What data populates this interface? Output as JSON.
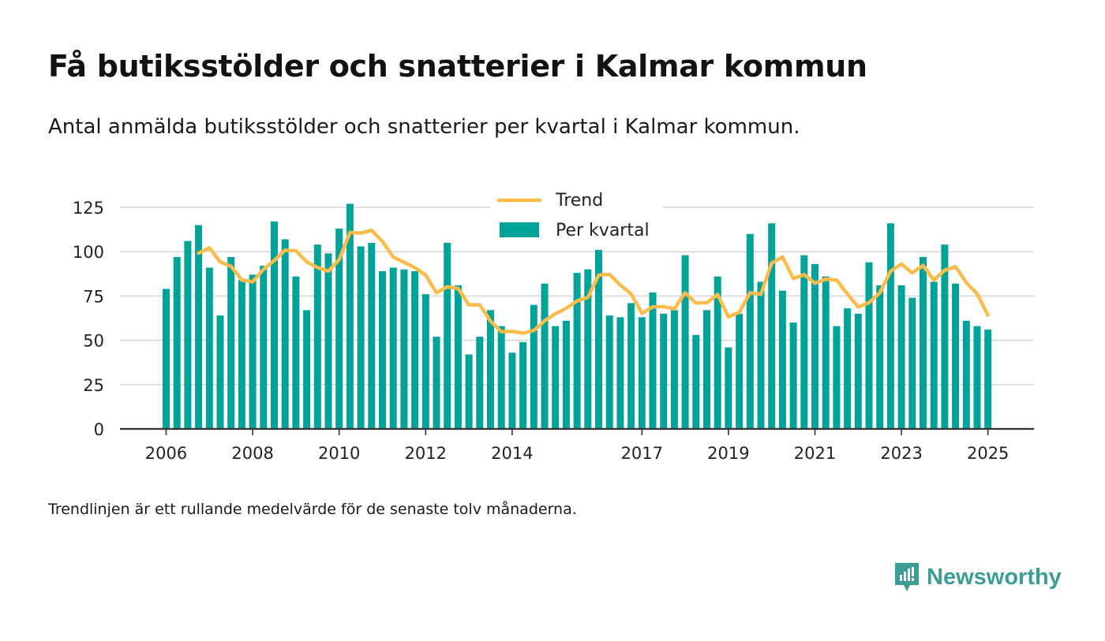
{
  "title": "Få butiksstölder och snatterier i Kalmar kommun",
  "subtitle": "Antal anmälda butiksstölder och snatterier per kvartal i Kalmar kommun.",
  "footnote": "Trendlinjen är ett rullande medelvärde för de senaste tolv månaderna.",
  "brand": {
    "name": "Newsworthy",
    "icon": "newsworthy-logo-icon",
    "color": "#3a9e96"
  },
  "colors": {
    "bar": "#00a398",
    "trend": "#fcbc4c",
    "grid": "#d9d9d9",
    "axis": "#333333"
  },
  "chart_data": {
    "type": "bar",
    "x": [
      "2006-Q1",
      "2006-Q2",
      "2006-Q3",
      "2006-Q4",
      "2007-Q1",
      "2007-Q2",
      "2007-Q3",
      "2007-Q4",
      "2008-Q1",
      "2008-Q2",
      "2008-Q3",
      "2008-Q4",
      "2009-Q1",
      "2009-Q2",
      "2009-Q3",
      "2009-Q4",
      "2010-Q1",
      "2010-Q2",
      "2010-Q3",
      "2010-Q4",
      "2011-Q1",
      "2011-Q2",
      "2011-Q3",
      "2011-Q4",
      "2012-Q1",
      "2012-Q2",
      "2012-Q3",
      "2012-Q4",
      "2013-Q1",
      "2013-Q2",
      "2013-Q3",
      "2013-Q4",
      "2014-Q1",
      "2014-Q2",
      "2014-Q3",
      "2014-Q4",
      "2015-Q1",
      "2015-Q2",
      "2015-Q3",
      "2015-Q4",
      "2016-Q1",
      "2016-Q2",
      "2016-Q3",
      "2016-Q4",
      "2017-Q1",
      "2017-Q2",
      "2017-Q3",
      "2017-Q4",
      "2018-Q1",
      "2018-Q2",
      "2018-Q3",
      "2018-Q4",
      "2019-Q1",
      "2019-Q2",
      "2019-Q3",
      "2019-Q4",
      "2020-Q1",
      "2020-Q2",
      "2020-Q3",
      "2020-Q4",
      "2021-Q1",
      "2021-Q2",
      "2021-Q3",
      "2021-Q4",
      "2022-Q1",
      "2022-Q2",
      "2022-Q3",
      "2022-Q4",
      "2023-Q1",
      "2023-Q2",
      "2023-Q3",
      "2023-Q4",
      "2024-Q1",
      "2024-Q2",
      "2024-Q3",
      "2024-Q4",
      "2025-Q1"
    ],
    "series": [
      {
        "name": "Per kvartal",
        "type": "bar",
        "values": [
          79,
          97,
          106,
          115,
          91,
          64,
          97,
          84,
          87,
          92,
          117,
          107,
          86,
          67,
          104,
          99,
          113,
          127,
          103,
          105,
          89,
          91,
          90,
          89,
          76,
          52,
          105,
          81,
          42,
          52,
          67,
          58,
          43,
          49,
          70,
          82,
          58,
          61,
          88,
          90,
          101,
          64,
          63,
          71,
          63,
          77,
          65,
          67,
          98,
          53,
          67,
          86,
          46,
          65,
          110,
          83,
          116,
          78,
          60,
          98,
          93,
          86,
          58,
          68,
          65,
          94,
          81,
          116,
          81,
          74,
          97,
          83,
          104,
          82,
          61,
          58,
          56
        ]
      },
      {
        "name": "Trend",
        "type": "line",
        "values": [
          null,
          null,
          null,
          99.2,
          102.2,
          94.2,
          91.8,
          84,
          83,
          90,
          95,
          100.8,
          100.5,
          94.2,
          91,
          89,
          95.5,
          110.8,
          110.5,
          112,
          105.8,
          97,
          94,
          91,
          86.8,
          76.8,
          80.2,
          79.2,
          70,
          70,
          60.8,
          54.8,
          55,
          54,
          55.5,
          61,
          65,
          68,
          72.2,
          74.2,
          86.8,
          87.2,
          81.2,
          76.2,
          65.2,
          68.8,
          69,
          67.8,
          76.8,
          71,
          71.2,
          75.8,
          63.2,
          65.8,
          76.8,
          76,
          93.5,
          97,
          84.8,
          87,
          82.2,
          84.5,
          84,
          76.2,
          68.8,
          71.2,
          76.8,
          89,
          93,
          88,
          92.2,
          84,
          89.5,
          91.5,
          82.5,
          76.2,
          64.2
        ]
      }
    ],
    "ylim": [
      0,
      127
    ],
    "y_ticks": [
      0,
      25,
      50,
      75,
      100,
      125
    ],
    "x_tick_labels": [
      "2006",
      "2008",
      "2010",
      "2012",
      "2014",
      "2017",
      "2019",
      "2021",
      "2023",
      "2025"
    ],
    "legend": {
      "placement": "top-center",
      "entries": [
        "Trend",
        "Per kvartal"
      ]
    },
    "grid": true
  }
}
